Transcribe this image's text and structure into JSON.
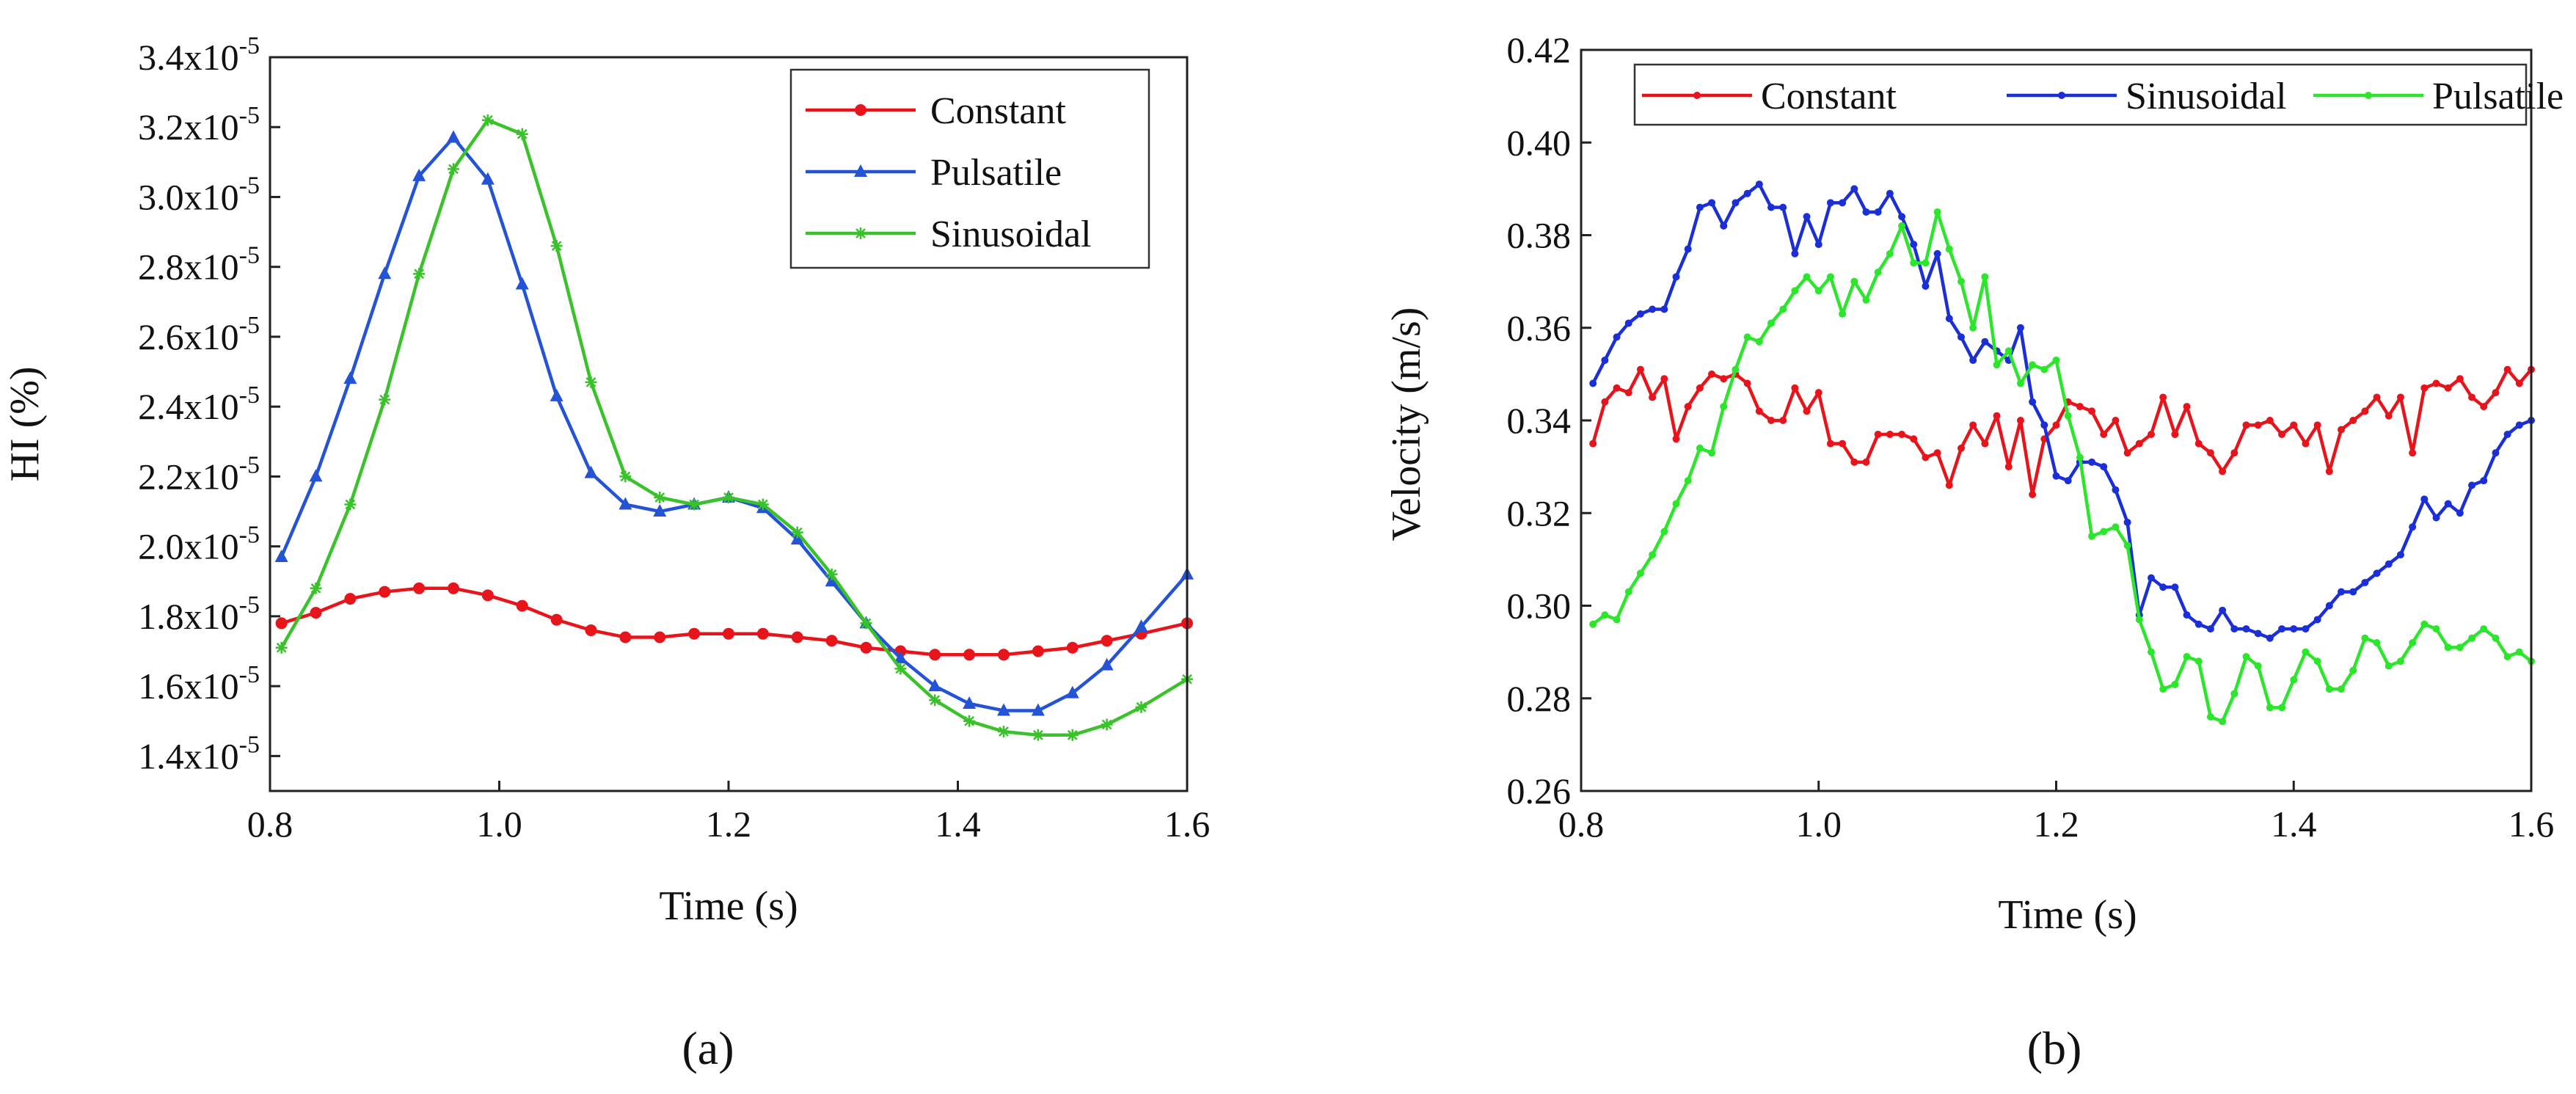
{
  "chart_data": [
    {
      "id": "a",
      "type": "line",
      "panel_label": "(a)",
      "title": "",
      "xlabel": "Time (s)",
      "ylabel": "HI (%)",
      "xlim": [
        0.8,
        1.6
      ],
      "ylim": [
        1.3e-05,
        3.4e-05
      ],
      "xticks": [
        0.8,
        1.0,
        1.2,
        1.4,
        1.6
      ],
      "xtick_labels": [
        "0.8",
        "1.0",
        "1.2",
        "1.4",
        "1.6"
      ],
      "yticks": [
        1.4e-05,
        1.6e-05,
        1.8e-05,
        2e-05,
        2.2e-05,
        2.4e-05,
        2.6e-05,
        2.8e-05,
        3e-05,
        3.2e-05,
        3.4e-05
      ],
      "ytick_mantissa": [
        "1.4x10",
        "1.6x10",
        "1.8x10",
        "2.0x10",
        "2.2x10",
        "2.4x10",
        "2.6x10",
        "2.8x10",
        "3.0x10",
        "3.2x10",
        "3.4x10"
      ],
      "ytick_exponent": "-5",
      "legend_position": "top-right",
      "grid": false,
      "series": [
        {
          "name": "Constant",
          "color": "#e8141b",
          "marker": "circle",
          "x": [
            0.81,
            0.84,
            0.87,
            0.9,
            0.93,
            0.96,
            0.99,
            1.02,
            1.05,
            1.08,
            1.11,
            1.14,
            1.17,
            1.2,
            1.23,
            1.26,
            1.29,
            1.32,
            1.35,
            1.38,
            1.41,
            1.44,
            1.47,
            1.5,
            1.53,
            1.56,
            1.6
          ],
          "y": [
            1.78e-05,
            1.81e-05,
            1.85e-05,
            1.87e-05,
            1.88e-05,
            1.88e-05,
            1.86e-05,
            1.83e-05,
            1.79e-05,
            1.76e-05,
            1.74e-05,
            1.74e-05,
            1.75e-05,
            1.75e-05,
            1.75e-05,
            1.74e-05,
            1.73e-05,
            1.71e-05,
            1.7e-05,
            1.69e-05,
            1.69e-05,
            1.69e-05,
            1.7e-05,
            1.71e-05,
            1.73e-05,
            1.75e-05,
            1.78e-05
          ]
        },
        {
          "name": "Pulsatile",
          "color": "#2453d6",
          "marker": "triangle",
          "x": [
            0.81,
            0.84,
            0.87,
            0.9,
            0.93,
            0.96,
            0.99,
            1.02,
            1.05,
            1.08,
            1.11,
            1.14,
            1.17,
            1.2,
            1.23,
            1.26,
            1.29,
            1.32,
            1.35,
            1.38,
            1.41,
            1.44,
            1.47,
            1.5,
            1.53,
            1.56,
            1.6
          ],
          "y": [
            1.97e-05,
            2.2e-05,
            2.48e-05,
            2.78e-05,
            3.06e-05,
            3.17e-05,
            3.05e-05,
            2.75e-05,
            2.43e-05,
            2.21e-05,
            2.12e-05,
            2.1e-05,
            2.12e-05,
            2.14e-05,
            2.11e-05,
            2.02e-05,
            1.9e-05,
            1.78e-05,
            1.68e-05,
            1.6e-05,
            1.55e-05,
            1.53e-05,
            1.53e-05,
            1.58e-05,
            1.66e-05,
            1.77e-05,
            1.92e-05
          ]
        },
        {
          "name": "Sinusoidal",
          "color": "#39c22a",
          "marker": "asterisk",
          "x": [
            0.81,
            0.84,
            0.87,
            0.9,
            0.93,
            0.96,
            0.99,
            1.02,
            1.05,
            1.08,
            1.11,
            1.14,
            1.17,
            1.2,
            1.23,
            1.26,
            1.29,
            1.32,
            1.35,
            1.38,
            1.41,
            1.44,
            1.47,
            1.5,
            1.53,
            1.56,
            1.6
          ],
          "y": [
            1.71e-05,
            1.88e-05,
            2.12e-05,
            2.42e-05,
            2.78e-05,
            3.08e-05,
            3.22e-05,
            3.18e-05,
            2.86e-05,
            2.47e-05,
            2.2e-05,
            2.14e-05,
            2.12e-05,
            2.14e-05,
            2.12e-05,
            2.04e-05,
            1.92e-05,
            1.78e-05,
            1.65e-05,
            1.56e-05,
            1.5e-05,
            1.47e-05,
            1.46e-05,
            1.46e-05,
            1.49e-05,
            1.54e-05,
            1.62e-05
          ]
        }
      ]
    },
    {
      "id": "b",
      "type": "line",
      "panel_label": "(b)",
      "title": "",
      "xlabel": "Time (s)",
      "ylabel": "Velocity (m/s)",
      "xlim": [
        0.8,
        1.6
      ],
      "ylim": [
        0.26,
        0.42
      ],
      "xticks": [
        0.8,
        1.0,
        1.2,
        1.4,
        1.6
      ],
      "xtick_labels": [
        "0.8",
        "1.0",
        "1.2",
        "1.4",
        "1.6"
      ],
      "yticks": [
        0.26,
        0.28,
        0.3,
        0.32,
        0.34,
        0.36,
        0.38,
        0.4,
        0.42
      ],
      "ytick_labels": [
        "0.26",
        "0.28",
        "0.30",
        "0.32",
        "0.34",
        "0.36",
        "0.38",
        "0.40",
        "0.42"
      ],
      "legend_position": "top",
      "grid": false,
      "series": [
        {
          "name": "Constant",
          "color": "#e8141b",
          "marker": "dot",
          "x": [
            0.81,
            0.82,
            0.83,
            0.84,
            0.85,
            0.86,
            0.87,
            0.88,
            0.89,
            0.9,
            0.91,
            0.92,
            0.93,
            0.94,
            0.95,
            0.96,
            0.97,
            0.98,
            0.99,
            1.0,
            1.01,
            1.02,
            1.03,
            1.04,
            1.05,
            1.06,
            1.07,
            1.08,
            1.09,
            1.1,
            1.11,
            1.12,
            1.13,
            1.14,
            1.15,
            1.16,
            1.17,
            1.18,
            1.19,
            1.2,
            1.21,
            1.22,
            1.23,
            1.24,
            1.25,
            1.26,
            1.27,
            1.28,
            1.29,
            1.3,
            1.31,
            1.32,
            1.33,
            1.34,
            1.35,
            1.36,
            1.37,
            1.38,
            1.39,
            1.4,
            1.41,
            1.42,
            1.43,
            1.44,
            1.45,
            1.46,
            1.47,
            1.48,
            1.49,
            1.5,
            1.51,
            1.52,
            1.53,
            1.54,
            1.55,
            1.56,
            1.57,
            1.58,
            1.59,
            1.6
          ],
          "y": [
            0.335,
            0.344,
            0.347,
            0.346,
            0.351,
            0.345,
            0.349,
            0.336,
            0.343,
            0.347,
            0.35,
            0.349,
            0.35,
            0.348,
            0.342,
            0.34,
            0.34,
            0.347,
            0.342,
            0.346,
            0.335,
            0.335,
            0.331,
            0.331,
            0.337,
            0.337,
            0.337,
            0.336,
            0.332,
            0.333,
            0.326,
            0.334,
            0.339,
            0.335,
            0.341,
            0.33,
            0.34,
            0.324,
            0.336,
            0.339,
            0.344,
            0.343,
            0.342,
            0.337,
            0.34,
            0.333,
            0.335,
            0.337,
            0.345,
            0.337,
            0.343,
            0.335,
            0.333,
            0.329,
            0.333,
            0.339,
            0.339,
            0.34,
            0.337,
            0.339,
            0.335,
            0.339,
            0.329,
            0.338,
            0.34,
            0.342,
            0.345,
            0.341,
            0.345,
            0.333,
            0.347,
            0.348,
            0.347,
            0.349,
            0.345,
            0.343,
            0.346,
            0.351,
            0.348,
            0.351
          ]
        },
        {
          "name": "Sinusoidal",
          "color": "#1a2fd8",
          "marker": "dot",
          "x": [
            0.81,
            0.82,
            0.83,
            0.84,
            0.85,
            0.86,
            0.87,
            0.88,
            0.89,
            0.9,
            0.91,
            0.92,
            0.93,
            0.94,
            0.95,
            0.96,
            0.97,
            0.98,
            0.99,
            1.0,
            1.01,
            1.02,
            1.03,
            1.04,
            1.05,
            1.06,
            1.07,
            1.08,
            1.09,
            1.1,
            1.11,
            1.12,
            1.13,
            1.14,
            1.15,
            1.16,
            1.17,
            1.18,
            1.19,
            1.2,
            1.21,
            1.22,
            1.23,
            1.24,
            1.25,
            1.26,
            1.27,
            1.28,
            1.29,
            1.3,
            1.31,
            1.32,
            1.33,
            1.34,
            1.35,
            1.36,
            1.37,
            1.38,
            1.39,
            1.4,
            1.41,
            1.42,
            1.43,
            1.44,
            1.45,
            1.46,
            1.47,
            1.48,
            1.49,
            1.5,
            1.51,
            1.52,
            1.53,
            1.54,
            1.55,
            1.56,
            1.57,
            1.58,
            1.59,
            1.6
          ],
          "y": [
            0.348,
            0.353,
            0.358,
            0.361,
            0.363,
            0.364,
            0.364,
            0.371,
            0.377,
            0.386,
            0.387,
            0.382,
            0.387,
            0.389,
            0.391,
            0.386,
            0.386,
            0.376,
            0.384,
            0.378,
            0.387,
            0.387,
            0.39,
            0.385,
            0.385,
            0.389,
            0.384,
            0.378,
            0.369,
            0.376,
            0.362,
            0.358,
            0.353,
            0.357,
            0.355,
            0.353,
            0.36,
            0.344,
            0.339,
            0.328,
            0.327,
            0.331,
            0.331,
            0.33,
            0.325,
            0.318,
            0.298,
            0.306,
            0.304,
            0.304,
            0.298,
            0.296,
            0.295,
            0.299,
            0.295,
            0.295,
            0.294,
            0.293,
            0.295,
            0.295,
            0.295,
            0.297,
            0.3,
            0.303,
            0.303,
            0.305,
            0.307,
            0.309,
            0.311,
            0.317,
            0.323,
            0.319,
            0.322,
            0.32,
            0.326,
            0.327,
            0.333,
            0.337,
            0.339,
            0.34
          ]
        },
        {
          "name": "Pulsatile",
          "color": "#2be62b",
          "marker": "dot",
          "x": [
            0.81,
            0.82,
            0.83,
            0.84,
            0.85,
            0.86,
            0.87,
            0.88,
            0.89,
            0.9,
            0.91,
            0.92,
            0.93,
            0.94,
            0.95,
            0.96,
            0.97,
            0.98,
            0.99,
            1.0,
            1.01,
            1.02,
            1.03,
            1.04,
            1.05,
            1.06,
            1.07,
            1.08,
            1.09,
            1.1,
            1.11,
            1.12,
            1.13,
            1.14,
            1.15,
            1.16,
            1.17,
            1.18,
            1.19,
            1.2,
            1.21,
            1.22,
            1.23,
            1.24,
            1.25,
            1.26,
            1.27,
            1.28,
            1.29,
            1.3,
            1.31,
            1.32,
            1.33,
            1.34,
            1.35,
            1.36,
            1.37,
            1.38,
            1.39,
            1.4,
            1.41,
            1.42,
            1.43,
            1.44,
            1.45,
            1.46,
            1.47,
            1.48,
            1.49,
            1.5,
            1.51,
            1.52,
            1.53,
            1.54,
            1.55,
            1.56,
            1.57,
            1.58,
            1.59,
            1.6
          ],
          "y": [
            0.296,
            0.298,
            0.297,
            0.303,
            0.307,
            0.311,
            0.316,
            0.322,
            0.327,
            0.334,
            0.333,
            0.343,
            0.351,
            0.358,
            0.357,
            0.361,
            0.364,
            0.368,
            0.371,
            0.368,
            0.371,
            0.363,
            0.37,
            0.366,
            0.372,
            0.376,
            0.382,
            0.374,
            0.374,
            0.385,
            0.377,
            0.37,
            0.36,
            0.371,
            0.352,
            0.355,
            0.348,
            0.352,
            0.351,
            0.353,
            0.341,
            0.332,
            0.315,
            0.316,
            0.317,
            0.313,
            0.297,
            0.29,
            0.282,
            0.283,
            0.289,
            0.288,
            0.276,
            0.275,
            0.281,
            0.289,
            0.287,
            0.278,
            0.278,
            0.284,
            0.29,
            0.288,
            0.282,
            0.282,
            0.286,
            0.293,
            0.292,
            0.287,
            0.288,
            0.292,
            0.296,
            0.295,
            0.291,
            0.291,
            0.293,
            0.295,
            0.293,
            0.289,
            0.29,
            0.288
          ]
        }
      ]
    }
  ]
}
